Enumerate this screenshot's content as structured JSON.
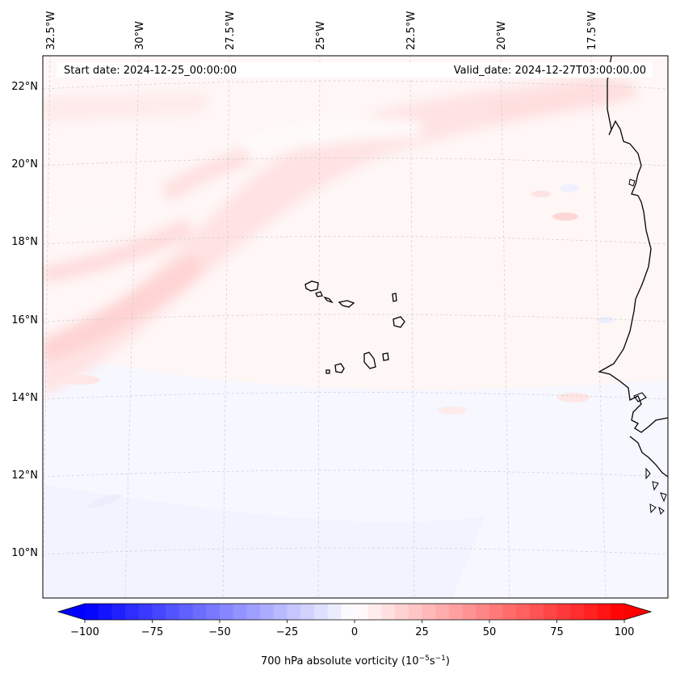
{
  "map": {
    "start_date_label": "Start date: 2024-12-25_00:00:00",
    "valid_date_label": "Valid_date: 2024-12-27T03:00:00.00",
    "lon_labels": [
      "32.5°W",
      "30°W",
      "27.5°W",
      "25°W",
      "22.5°W",
      "20°W",
      "17.5°W"
    ],
    "lat_labels": [
      "22°N",
      "20°N",
      "18°N",
      "16°N",
      "14°N",
      "12°N",
      "10°N"
    ],
    "field": "700 hPa absolute vorticity",
    "gridlines": true,
    "coastline_color": "#000000"
  },
  "colorbar": {
    "label_main": "700 hPa absolute vorticity (10",
    "label_exp1": "−5",
    "label_mid": "s",
    "label_exp2": "−1",
    "label_end": ")",
    "ticks": [
      "−100",
      "−75",
      "−50",
      "−25",
      "0",
      "25",
      "50",
      "75",
      "100"
    ],
    "tick_values": [
      -100,
      -75,
      -50,
      -25,
      0,
      25,
      50,
      75,
      100
    ],
    "range": [
      -100,
      100
    ],
    "levels": 40,
    "colormap": "bwr",
    "color_min": "#0000ff",
    "color_mid": "#ffffff",
    "color_max": "#ff0000",
    "extend": "both"
  }
}
